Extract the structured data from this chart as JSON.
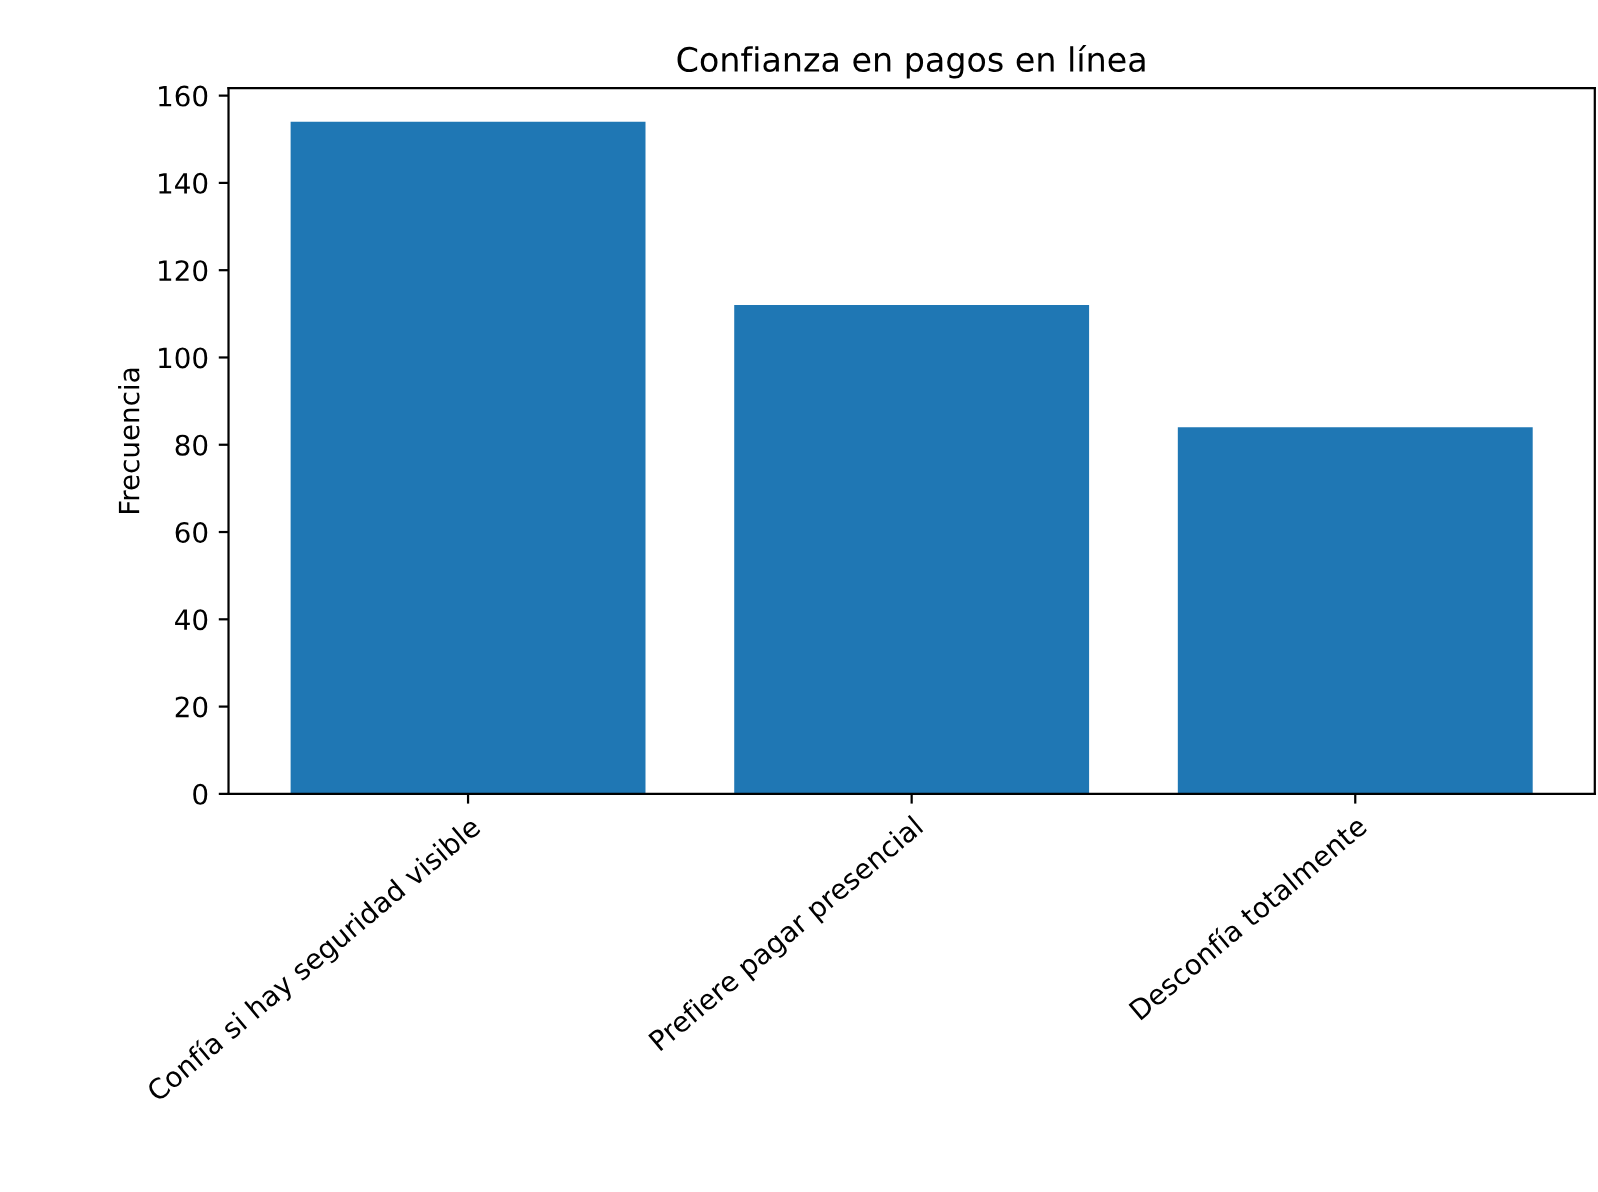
{
  "chart_data": {
    "type": "bar",
    "title": "Confianza en pagos en línea",
    "ylabel": "Frecuencia",
    "categories": [
      "Confía si hay seguridad visible",
      "Prefiere pagar presencial",
      "Desconfía totalmente"
    ],
    "values": [
      154,
      112,
      84
    ],
    "color": "#1f77b4",
    "ylim": [
      0,
      161.7
    ],
    "yticks": [
      0,
      20,
      40,
      60,
      80,
      100,
      120,
      140,
      160
    ],
    "grid": false
  }
}
